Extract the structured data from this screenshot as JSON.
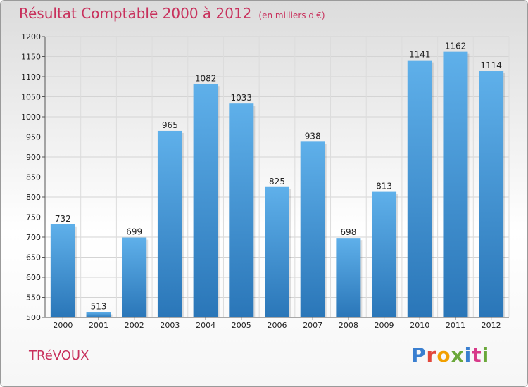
{
  "header": {
    "title": "Résultat Comptable 2000 à 2012",
    "subtitle": "(en milliers d'€)"
  },
  "location": "TRéVOUX",
  "logo": {
    "letters": [
      "P",
      "r",
      "o",
      "x",
      "i",
      "t",
      "i"
    ]
  },
  "colors": {
    "bar_top": "#5fb0ea",
    "bar_bottom": "#2a76b8",
    "title": "#c8305c"
  },
  "chart_data": {
    "type": "bar",
    "title": "Résultat Comptable 2000 à 2012",
    "subtitle": "(en milliers d'€)",
    "categories": [
      "2000",
      "2001",
      "2002",
      "2003",
      "2004",
      "2005",
      "2006",
      "2007",
      "2008",
      "2009",
      "2010",
      "2011",
      "2012"
    ],
    "values": [
      732,
      513,
      699,
      965,
      1082,
      1033,
      825,
      938,
      698,
      813,
      1141,
      1162,
      1114
    ],
    "ylim": [
      500,
      1200
    ],
    "yticks": [
      500,
      550,
      600,
      650,
      700,
      750,
      800,
      850,
      900,
      950,
      1000,
      1050,
      1100,
      1150,
      1200
    ],
    "grid": true,
    "data_labels": true
  }
}
